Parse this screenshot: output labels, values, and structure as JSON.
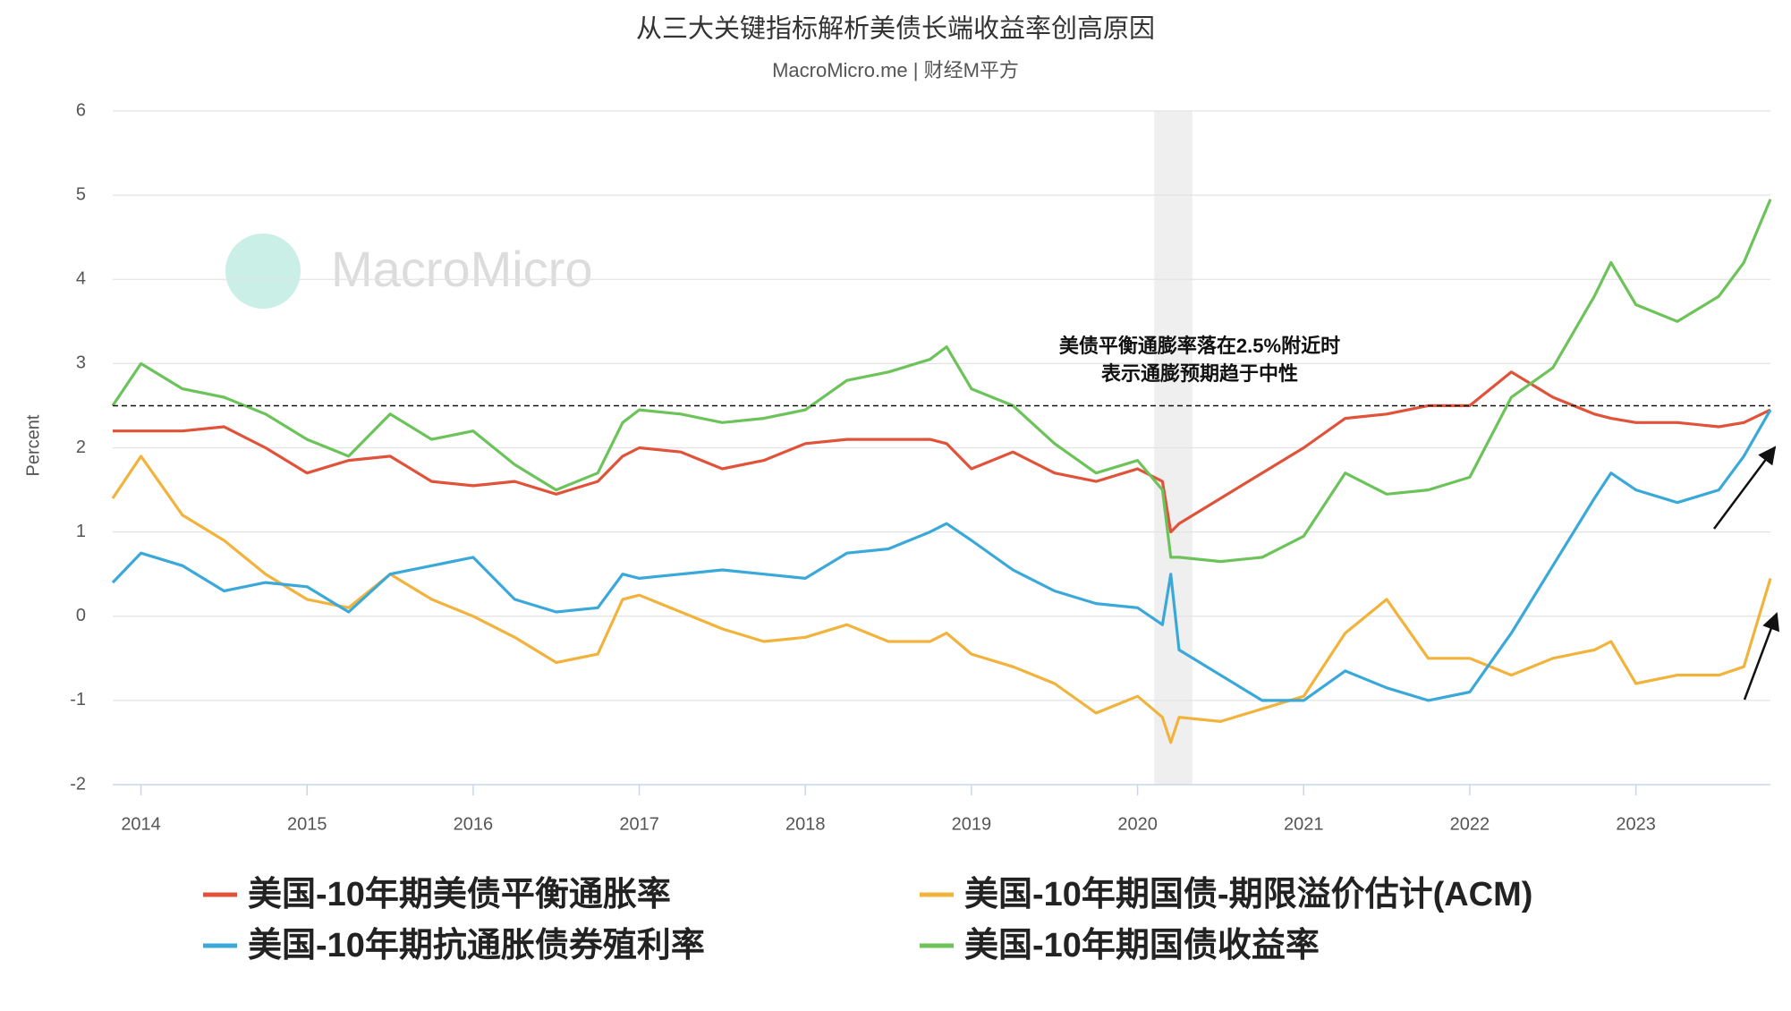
{
  "chart_data": {
    "type": "line",
    "title": "从三大关键指标解析美债长端收益率创高原因",
    "subtitle": "MacroMicro.me | 财经M平方",
    "watermark": "MacroMicro",
    "y_label": "Percent",
    "annotation": [
      "美债平衡通膨率落在2.5%附近时",
      "表示通膨预期趋于中性"
    ],
    "reference_line": 2.5,
    "shaded_range": [
      2020.1,
      2020.33
    ],
    "grid": true,
    "xlim": [
      2013.83,
      2023.81
    ],
    "xticks": [
      2014,
      2015,
      2016,
      2017,
      2018,
      2019,
      2020,
      2021,
      2022,
      2023
    ],
    "ylim": [
      -2,
      6
    ],
    "yticks": [
      -2,
      -1,
      0,
      1,
      2,
      3,
      4,
      5,
      6
    ],
    "x": [
      2013.83,
      2014.0,
      2014.25,
      2014.5,
      2014.75,
      2015.0,
      2015.25,
      2015.5,
      2015.75,
      2016.0,
      2016.25,
      2016.5,
      2016.75,
      2016.9,
      2017.0,
      2017.25,
      2017.5,
      2017.75,
      2018.0,
      2018.25,
      2018.5,
      2018.75,
      2018.85,
      2019.0,
      2019.25,
      2019.5,
      2019.75,
      2020.0,
      2020.15,
      2020.2,
      2020.25,
      2020.5,
      2020.75,
      2021.0,
      2021.25,
      2021.5,
      2021.75,
      2022.0,
      2022.25,
      2022.5,
      2022.75,
      2022.85,
      2023.0,
      2023.25,
      2023.5,
      2023.65,
      2023.81
    ],
    "series": [
      {
        "name": "美国-10年期美债平衡通胀率",
        "color": "#e0533a",
        "values": [
          2.2,
          2.2,
          2.2,
          2.25,
          2.0,
          1.7,
          1.85,
          1.9,
          1.6,
          1.55,
          1.6,
          1.45,
          1.6,
          1.9,
          2.0,
          1.95,
          1.75,
          1.85,
          2.05,
          2.1,
          2.1,
          2.1,
          2.05,
          1.75,
          1.95,
          1.7,
          1.6,
          1.75,
          1.6,
          1.0,
          1.1,
          1.4,
          1.7,
          2.0,
          2.35,
          2.4,
          2.5,
          2.5,
          2.9,
          2.6,
          2.4,
          2.35,
          2.3,
          2.3,
          2.25,
          2.3,
          2.45
        ]
      },
      {
        "name": "美国-10年期国债-期限溢价估计(ACM)",
        "color": "#f2b33d",
        "values": [
          1.4,
          1.9,
          1.2,
          0.9,
          0.5,
          0.2,
          0.1,
          0.5,
          0.2,
          0.0,
          -0.25,
          -0.55,
          -0.45,
          0.2,
          0.25,
          0.05,
          -0.15,
          -0.3,
          -0.25,
          -0.1,
          -0.3,
          -0.3,
          -0.2,
          -0.45,
          -0.6,
          -0.8,
          -1.15,
          -0.95,
          -1.2,
          -1.5,
          -1.2,
          -1.25,
          -1.1,
          -0.95,
          -0.2,
          0.2,
          -0.5,
          -0.5,
          -0.7,
          -0.5,
          -0.4,
          -0.3,
          -0.8,
          -0.7,
          -0.7,
          -0.6,
          0.45
        ]
      },
      {
        "name": "美国-10年期抗通胀债券殖利率",
        "color": "#3aa9d9",
        "values": [
          0.4,
          0.75,
          0.6,
          0.3,
          0.4,
          0.35,
          0.05,
          0.5,
          0.6,
          0.7,
          0.2,
          0.05,
          0.1,
          0.5,
          0.45,
          0.5,
          0.55,
          0.5,
          0.45,
          0.75,
          0.8,
          1.0,
          1.1,
          0.9,
          0.55,
          0.3,
          0.15,
          0.1,
          -0.1,
          0.5,
          -0.4,
          -0.7,
          -1.0,
          -1.0,
          -0.65,
          -0.85,
          -1.0,
          -0.9,
          -0.2,
          0.6,
          1.4,
          1.7,
          1.5,
          1.35,
          1.5,
          1.9,
          2.45
        ]
      },
      {
        "name": "美国-10年期国债收益率",
        "color": "#6cc35a",
        "values": [
          2.5,
          3.0,
          2.7,
          2.6,
          2.4,
          2.1,
          1.9,
          2.4,
          2.1,
          2.2,
          1.8,
          1.5,
          1.7,
          2.3,
          2.45,
          2.4,
          2.3,
          2.35,
          2.45,
          2.8,
          2.9,
          3.05,
          3.2,
          2.7,
          2.5,
          2.05,
          1.7,
          1.85,
          1.5,
          0.7,
          0.7,
          0.65,
          0.7,
          0.95,
          1.7,
          1.45,
          1.5,
          1.65,
          2.6,
          2.95,
          3.8,
          4.2,
          3.7,
          3.5,
          3.8,
          4.2,
          4.95
        ]
      }
    ]
  }
}
